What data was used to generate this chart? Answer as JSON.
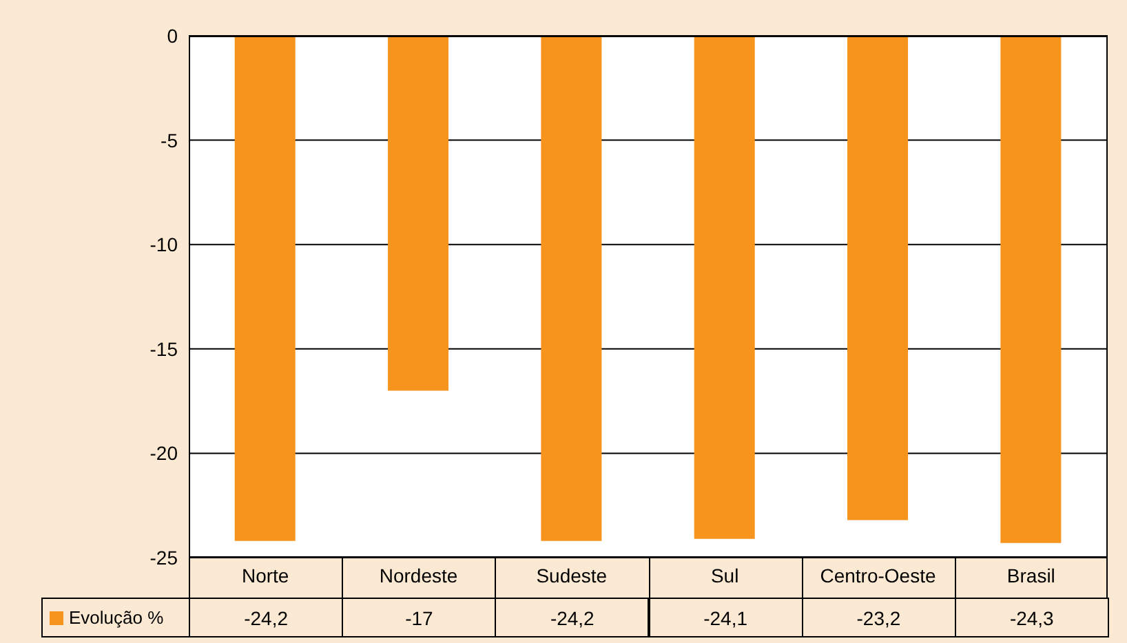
{
  "chart_data": {
    "type": "bar",
    "categories": [
      "Norte",
      "Nordeste",
      "Sudeste",
      "Sul",
      "Centro-Oeste",
      "Brasil"
    ],
    "series": [
      {
        "name": "Evolução %",
        "color": "#f7941d",
        "values": [
          -24.2,
          -17,
          -24.2,
          -24.1,
          -23.2,
          -24.3
        ],
        "value_labels": [
          "-24,2",
          "-17",
          "-24,2",
          "-24,1",
          "-23,2",
          "-24,3"
        ]
      }
    ],
    "ylim": [
      -25,
      0
    ],
    "yticks": [
      0,
      -5,
      -10,
      -15,
      -20,
      -25
    ],
    "grid": "y",
    "legend": "bottom left"
  }
}
